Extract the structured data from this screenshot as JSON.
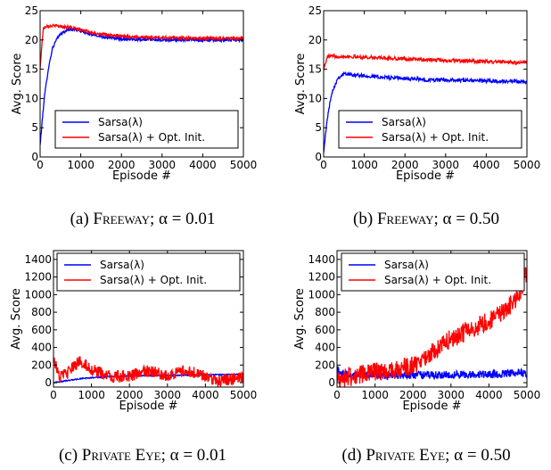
{
  "chart_data": [
    {
      "type": "line",
      "caption": "(a) Freeway; α = 0.01",
      "caption_prefix": "(a)",
      "caption_name": "Freeway",
      "caption_param": "α = 0.01",
      "xlabel": "Episode #",
      "ylabel": "Avg. Score",
      "xlim": [
        0,
        5000
      ],
      "ylim": [
        0,
        25
      ],
      "xticks": [
        0,
        1000,
        2000,
        3000,
        4000,
        5000
      ],
      "yticks": [
        0,
        5,
        10,
        15,
        20,
        25
      ],
      "legend_position": "lower-right",
      "series": [
        {
          "name": "Sarsa(λ)",
          "color": "#0000ff",
          "noise": 0.25,
          "points": [
            [
              0,
              2
            ],
            [
              50,
              6
            ],
            [
              100,
              10
            ],
            [
              200,
              15
            ],
            [
              300,
              18.5
            ],
            [
              400,
              20
            ],
            [
              500,
              21
            ],
            [
              700,
              21.8
            ],
            [
              900,
              21.8
            ],
            [
              1200,
              21
            ],
            [
              1600,
              20.5
            ],
            [
              2000,
              20.2
            ],
            [
              3000,
              20
            ],
            [
              4000,
              20
            ],
            [
              5000,
              20
            ]
          ]
        },
        {
          "name": "Sarsa(λ) + Opt. Init.",
          "color": "#ff0000",
          "noise": 0.25,
          "points": [
            [
              0,
              15
            ],
            [
              40,
              19
            ],
            [
              80,
              22
            ],
            [
              150,
              22.4
            ],
            [
              400,
              22.4
            ],
            [
              700,
              22.2
            ],
            [
              1000,
              21.7
            ],
            [
              1500,
              21
            ],
            [
              2000,
              20.6
            ],
            [
              3000,
              20.4
            ],
            [
              4000,
              20.3
            ],
            [
              5000,
              20.3
            ]
          ]
        }
      ]
    },
    {
      "type": "line",
      "caption": "(b) Freeway; α = 0.50",
      "caption_prefix": "(b)",
      "caption_name": "Freeway",
      "caption_param": "α = 0.50",
      "xlabel": "Episode #",
      "ylabel": "Avg. Score",
      "xlim": [
        0,
        5000
      ],
      "ylim": [
        0,
        25
      ],
      "xticks": [
        0,
        1000,
        2000,
        3000,
        4000,
        5000
      ],
      "yticks": [
        0,
        5,
        10,
        15,
        20,
        25
      ],
      "legend_position": "lower-right",
      "series": [
        {
          "name": "Sarsa(λ)",
          "color": "#0000ff",
          "noise": 0.3,
          "points": [
            [
              0,
              1
            ],
            [
              50,
              4
            ],
            [
              100,
              7
            ],
            [
              200,
              11
            ],
            [
              350,
              13.5
            ],
            [
              500,
              14.2
            ],
            [
              800,
              14
            ],
            [
              1500,
              13.6
            ],
            [
              2500,
              13.2
            ],
            [
              4000,
              13
            ],
            [
              5000,
              12.8
            ]
          ]
        },
        {
          "name": "Sarsa(λ) + Opt. Init.",
          "color": "#ff0000",
          "noise": 0.3,
          "points": [
            [
              0,
              15
            ],
            [
              100,
              17.2
            ],
            [
              500,
              17.2
            ],
            [
              1500,
              16.9
            ],
            [
              3000,
              16.5
            ],
            [
              4000,
              16.3
            ],
            [
              5000,
              16.1
            ]
          ]
        }
      ]
    },
    {
      "type": "line",
      "caption": "(c) Private Eye; α = 0.01",
      "caption_prefix": "(c)",
      "caption_name": "Private Eye",
      "caption_param": "α = 0.01",
      "xlabel": "Episode #",
      "ylabel": "Avg. Score",
      "xlim": [
        0,
        5000
      ],
      "ylim": [
        -50,
        1500
      ],
      "xticks": [
        0,
        1000,
        2000,
        3000,
        4000,
        5000
      ],
      "yticks": [
        0,
        200,
        400,
        600,
        800,
        1000,
        1200,
        1400
      ],
      "legend_position": "upper-right",
      "series": [
        {
          "name": "Sarsa(λ)",
          "color": "#0000ff",
          "noise": 6,
          "points": [
            [
              0,
              0
            ],
            [
              300,
              20
            ],
            [
              800,
              50
            ],
            [
              1500,
              70
            ],
            [
              2500,
              80
            ],
            [
              3500,
              85
            ],
            [
              4500,
              92
            ],
            [
              5000,
              95
            ]
          ]
        },
        {
          "name": "Sarsa(λ) + Opt. Init.",
          "color": "#ff0000",
          "noise": 70,
          "points": [
            [
              0,
              300
            ],
            [
              150,
              60
            ],
            [
              400,
              120
            ],
            [
              700,
              250
            ],
            [
              1000,
              150
            ],
            [
              1500,
              60
            ],
            [
              2000,
              80
            ],
            [
              2500,
              130
            ],
            [
              3000,
              80
            ],
            [
              3500,
              140
            ],
            [
              4000,
              70
            ],
            [
              4300,
              20
            ],
            [
              4600,
              40
            ],
            [
              5000,
              50
            ]
          ]
        }
      ]
    },
    {
      "type": "line",
      "caption": "(d) Private Eye; α = 0.50",
      "caption_prefix": "(d)",
      "caption_name": "Private Eye",
      "caption_param": "α = 0.50",
      "xlabel": "Episode #",
      "ylabel": "Avg. Score",
      "xlim": [
        0,
        5000
      ],
      "ylim": [
        -50,
        1500
      ],
      "xticks": [
        0,
        1000,
        2000,
        3000,
        4000,
        5000
      ],
      "yticks": [
        0,
        200,
        400,
        600,
        800,
        1000,
        1200,
        1400
      ],
      "legend_position": "upper-left",
      "series": [
        {
          "name": "Sarsa(λ)",
          "color": "#0000ff",
          "noise": 45,
          "points": [
            [
              0,
              150
            ],
            [
              200,
              90
            ],
            [
              1000,
              80
            ],
            [
              2000,
              85
            ],
            [
              3000,
              90
            ],
            [
              4000,
              95
            ],
            [
              4800,
              110
            ],
            [
              5000,
              100
            ]
          ]
        },
        {
          "name": "Sarsa(λ) + Opt. Init.",
          "color": "#ff0000",
          "noise": 110,
          "points": [
            [
              0,
              50
            ],
            [
              500,
              80
            ],
            [
              1000,
              120
            ],
            [
              1500,
              140
            ],
            [
              2000,
              200
            ],
            [
              2500,
              350
            ],
            [
              3000,
              500
            ],
            [
              3500,
              600
            ],
            [
              4000,
              700
            ],
            [
              4500,
              850
            ],
            [
              4800,
              1000
            ],
            [
              5000,
              1250
            ]
          ]
        }
      ]
    }
  ]
}
